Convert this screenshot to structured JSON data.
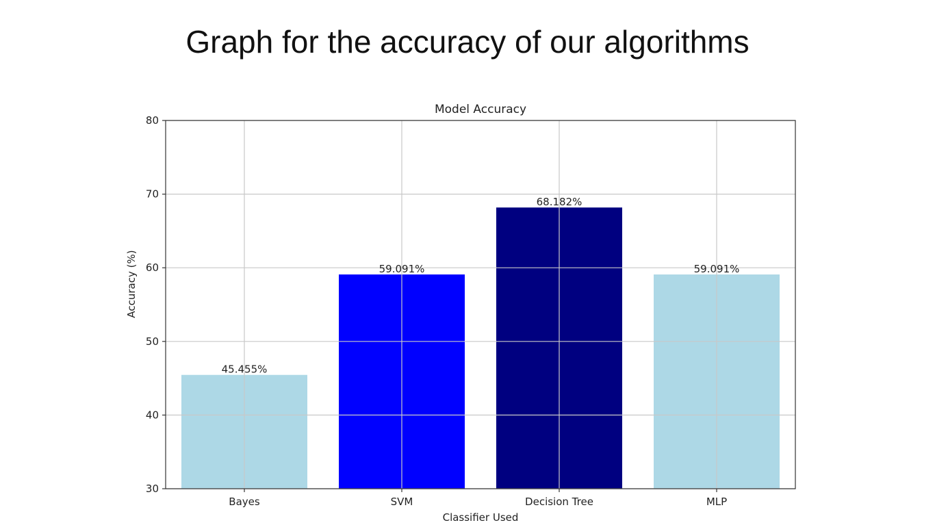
{
  "page": {
    "title": "Graph for the accuracy of our algorithms"
  },
  "chart_data": {
    "type": "bar",
    "title": "Model Accuracy",
    "xlabel": "Classifier Used",
    "ylabel": "Accuracy (%)",
    "ylim": [
      30,
      80
    ],
    "yticks": [
      30,
      40,
      50,
      60,
      70,
      80
    ],
    "grid": true,
    "categories": [
      "Bayes",
      "SVM",
      "Decision Tree",
      "MLP"
    ],
    "values": [
      45.455,
      59.091,
      68.182,
      59.091
    ],
    "data_labels": [
      "45.455%",
      "59.091%",
      "68.182%",
      "59.091%"
    ],
    "colors": [
      "#add8e6",
      "#0000ff",
      "#000080",
      "#add8e6"
    ]
  }
}
